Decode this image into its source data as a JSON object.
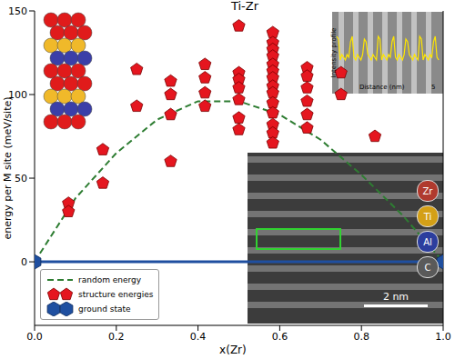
{
  "chart_data": {
    "type": "scatter",
    "title": "Ti-Zr",
    "x_label": "x(Zr)",
    "y_label": "energy per M site (meV/site)",
    "xlim": [
      0,
      1
    ],
    "xticks": [
      {
        "value": 0,
        "label": "0.0"
      },
      {
        "value": 0.2,
        "label": "0.2"
      },
      {
        "value": 0.4,
        "label": "0.4"
      },
      {
        "value": 0.6,
        "label": "0.6"
      },
      {
        "value": 0.8,
        "label": "0.8"
      },
      {
        "value": 1,
        "label": "1.0"
      }
    ],
    "ylim": [
      -38,
      150
    ],
    "yticks": [
      0,
      50,
      100,
      150
    ],
    "legend": "lower left",
    "series": [
      {
        "name": "random energy",
        "type": "line",
        "color": "#2e7d32",
        "marker": "none",
        "line_style": "dashed",
        "x": [
          0,
          0.1,
          0.2,
          0.3,
          0.4,
          0.5,
          0.6,
          0.7,
          0.8,
          0.9,
          1
        ],
        "values": [
          0,
          38,
          65,
          85,
          96,
          96,
          88,
          73,
          52,
          28,
          0
        ]
      },
      {
        "name": "structure energies",
        "type": "scatter",
        "color": "#e5161f",
        "marker": "pentagon",
        "line_style": "none",
        "x": [
          0.083,
          0.083,
          0.167,
          0.167,
          0.25,
          0.25,
          0.333,
          0.333,
          0.333,
          0.333,
          0.417,
          0.417,
          0.417,
          0.417,
          0.5,
          0.5,
          0.5,
          0.5,
          0.5,
          0.5,
          0.5,
          0.583,
          0.583,
          0.583,
          0.583,
          0.583,
          0.583,
          0.583,
          0.583,
          0.583,
          0.583,
          0.583,
          0.583,
          0.583,
          0.583,
          0.667,
          0.667,
          0.667,
          0.667,
          0.667,
          0.667,
          0.75,
          0.75,
          0.833
        ],
        "values": [
          35,
          30,
          67,
          47,
          115,
          93,
          60,
          88,
          100,
          108,
          118,
          110,
          101,
          93,
          141,
          113,
          109,
          104,
          97,
          86,
          79,
          137,
          131,
          127,
          123,
          118,
          114,
          110,
          105,
          101,
          95,
          89,
          82,
          77,
          71,
          116,
          111,
          104,
          96,
          88,
          80,
          113,
          100,
          75
        ]
      },
      {
        "name": "ground state",
        "type": "line",
        "color": "#1f4fa0",
        "marker": "hexagon",
        "line_style": "solid",
        "x": [
          0,
          1
        ],
        "values": [
          0,
          0
        ]
      }
    ],
    "insets": {
      "profile": {
        "y_label": "Intensity profile",
        "x_label": "Distance (nm)",
        "x_tick": 5
      },
      "micrograph": {
        "scale_bar": "2 nm",
        "elements": [
          {
            "label": "Zr",
            "color": "#b03a2e"
          },
          {
            "label": "Ti",
            "color": "#d4a017"
          },
          {
            "label": "Al",
            "color": "#2c3e9e"
          },
          {
            "label": "C",
            "color": "#5a5a5a"
          }
        ]
      }
    }
  }
}
